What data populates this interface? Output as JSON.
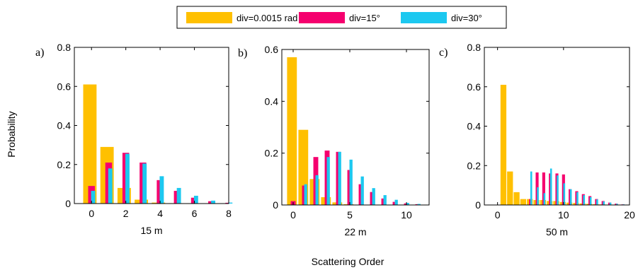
{
  "figure": {
    "ylabel": "Probability",
    "xlabel": "Scattering Order"
  },
  "legend": {
    "placement": "top-center",
    "items": [
      {
        "label": "div=0.0015 rad",
        "color": "#FFC000"
      },
      {
        "label": "div=15°",
        "color": "#F5006E"
      },
      {
        "label": "div=30°",
        "color": "#1CC8F0"
      }
    ]
  },
  "chart_data": [
    {
      "type": "bar",
      "panel_label": "a)",
      "xlabel": "15 m",
      "xlim": [
        -1,
        8
      ],
      "xticks": [
        0,
        2,
        4,
        6,
        8
      ],
      "ylim": [
        0,
        0.8
      ],
      "yticks": [
        0,
        0.2,
        0.4,
        0.6,
        0.8
      ],
      "ytick_labels": [
        "0",
        "0.2",
        "0.4",
        "0.6",
        "0.8"
      ],
      "x": [
        0,
        1,
        2,
        3,
        4,
        5,
        6,
        7,
        8
      ],
      "series": [
        {
          "name": "div=0.0015 rad",
          "color": "#FFC000",
          "values": [
            0.61,
            0.29,
            0.08,
            0.02,
            0.005,
            0.002,
            0.001,
            0.0,
            0.0
          ]
        },
        {
          "name": "div=15°",
          "color": "#F5006E",
          "values": [
            0.09,
            0.21,
            0.26,
            0.21,
            0.12,
            0.065,
            0.03,
            0.012,
            0.004
          ]
        },
        {
          "name": "div=30°",
          "color": "#1CC8F0",
          "values": [
            0.065,
            0.18,
            0.255,
            0.205,
            0.14,
            0.08,
            0.04,
            0.015,
            0.005
          ]
        }
      ]
    },
    {
      "type": "bar",
      "panel_label": "b)",
      "xlabel": "22 m",
      "xlim": [
        -1,
        12
      ],
      "xticks": [
        0,
        5,
        10
      ],
      "ylim": [
        0,
        0.6
      ],
      "yticks": [
        0,
        0.2,
        0.4,
        0.6
      ],
      "ytick_labels": [
        "0",
        "0.2",
        "0.4",
        "0.6"
      ],
      "x": [
        0,
        1,
        2,
        3,
        4,
        5,
        6,
        7,
        8,
        9,
        10,
        11
      ],
      "series": [
        {
          "name": "div=0.0015 rad",
          "color": "#FFC000",
          "values": [
            0.57,
            0.29,
            0.1,
            0.03,
            0.01,
            0.003,
            0.001,
            0.0,
            0.0,
            0.0,
            0.0,
            0.0
          ]
        },
        {
          "name": "div=15°",
          "color": "#F5006E",
          "values": [
            0.015,
            0.075,
            0.185,
            0.21,
            0.205,
            0.135,
            0.08,
            0.05,
            0.025,
            0.012,
            0.006,
            0.003
          ]
        },
        {
          "name": "div=30°",
          "color": "#1CC8F0",
          "values": [
            0.0,
            0.08,
            0.115,
            0.185,
            0.205,
            0.175,
            0.11,
            0.065,
            0.038,
            0.02,
            0.008,
            0.004
          ]
        }
      ]
    },
    {
      "type": "bar",
      "panel_label": "c)",
      "xlabel": "50 m",
      "xlim": [
        -2,
        20
      ],
      "xticks": [
        0,
        10,
        20
      ],
      "ylim": [
        0,
        0.8
      ],
      "yticks": [
        0,
        0.2,
        0.4,
        0.6,
        0.8
      ],
      "ytick_labels": [
        "0",
        "0.2",
        "0.4",
        "0.6",
        "0.8"
      ],
      "x": [
        1,
        2,
        3,
        4,
        5,
        6,
        7,
        8,
        9,
        10,
        11,
        12,
        13,
        14,
        15,
        16,
        17,
        18,
        19
      ],
      "series": [
        {
          "name": "div=0.0015 rad",
          "color": "#FFC000",
          "values": [
            0.61,
            0.17,
            0.065,
            0.03,
            0.03,
            0.025,
            0.025,
            0.02,
            0.02,
            0.015,
            0.012,
            0.01,
            0.008,
            0.006,
            0.004,
            0.003,
            0.002,
            0.001,
            0.0
          ]
        },
        {
          "name": "div=15°",
          "color": "#F5006E",
          "values": [
            0.0,
            0.0,
            0.0,
            0.0,
            0.03,
            0.165,
            0.165,
            0.16,
            0.16,
            0.155,
            0.08,
            0.07,
            0.055,
            0.045,
            0.03,
            0.02,
            0.012,
            0.007,
            0.003
          ]
        },
        {
          "name": "div=30°",
          "color": "#1CC8F0",
          "values": [
            0.0,
            0.0,
            0.0,
            0.0,
            0.17,
            0.09,
            0.06,
            0.185,
            0.15,
            0.11,
            0.08,
            0.065,
            0.05,
            0.04,
            0.028,
            0.018,
            0.012,
            0.006,
            0.003
          ]
        }
      ]
    }
  ]
}
